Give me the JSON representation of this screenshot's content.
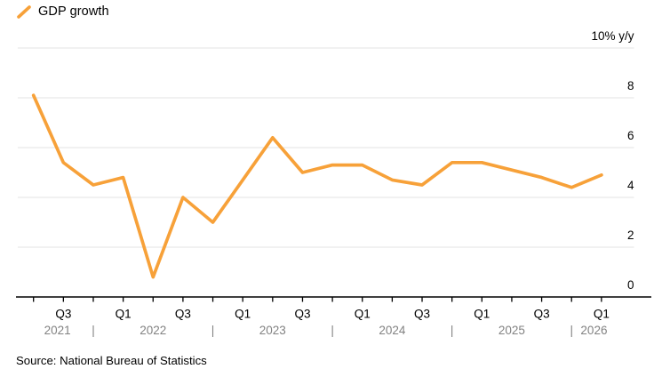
{
  "legend": {
    "label": "GDP growth"
  },
  "source": {
    "text": "Source: National Bureau of Statistics"
  },
  "colors": {
    "line": "#F7A139",
    "grid": "#E3E3E3",
    "axis": "#000000",
    "tick_label": "#000000",
    "year_label": "#828282",
    "background": "#FFFFFF"
  },
  "chart_data": {
    "type": "line",
    "title": "GDP growth",
    "unit_label": "10% y/y",
    "series": [
      {
        "name": "GDP growth",
        "x": [
          "Q2 2021",
          "Q3 2021",
          "Q4 2021",
          "Q1 2022",
          "Q2 2022",
          "Q3 2022",
          "Q4 2022",
          "Q1 2023",
          "Q2 2023",
          "Q3 2023",
          "Q4 2023",
          "Q1 2024",
          "Q2 2024",
          "Q3 2024",
          "Q4 2024",
          "Q1 2025",
          "Q2 2025",
          "Q3 2025",
          "Q4 2025",
          "Q1 2026"
        ],
        "values": [
          8.1,
          5.4,
          4.5,
          4.8,
          0.8,
          4.0,
          3.0,
          4.7,
          6.4,
          5.0,
          5.3,
          5.3,
          4.7,
          4.5,
          5.4,
          5.4,
          5.1,
          4.8,
          4.4,
          4.9
        ]
      }
    ],
    "ylim": [
      0,
      10
    ],
    "yticks": [
      0,
      2,
      4,
      6,
      8,
      10
    ],
    "ytick_labels": [
      "0",
      "2",
      "4",
      "6",
      "8",
      "10% y/y"
    ],
    "quarter_ticks": [
      {
        "t": 1,
        "label": "Q3"
      },
      {
        "t": 3,
        "label": "Q1"
      },
      {
        "t": 5,
        "label": "Q3"
      },
      {
        "t": 7,
        "label": "Q1"
      },
      {
        "t": 9,
        "label": "Q3"
      },
      {
        "t": 11,
        "label": "Q1"
      },
      {
        "t": 13,
        "label": "Q3"
      },
      {
        "t": 15,
        "label": "Q1"
      },
      {
        "t": 17,
        "label": "Q3"
      },
      {
        "t": 19,
        "label": "Q1"
      }
    ],
    "year_labels": [
      {
        "t": 0.8,
        "label": "2021"
      },
      {
        "t": 4,
        "label": "2022"
      },
      {
        "t": 8,
        "label": "2023"
      },
      {
        "t": 12,
        "label": "2024"
      },
      {
        "t": 16,
        "label": "2025"
      },
      {
        "t": 18.75,
        "label": "2026"
      }
    ],
    "year_separator_glyph": "|",
    "year_separators_t": [
      2,
      6,
      10,
      14,
      18
    ],
    "grid": true,
    "legend_position": "top-left"
  }
}
